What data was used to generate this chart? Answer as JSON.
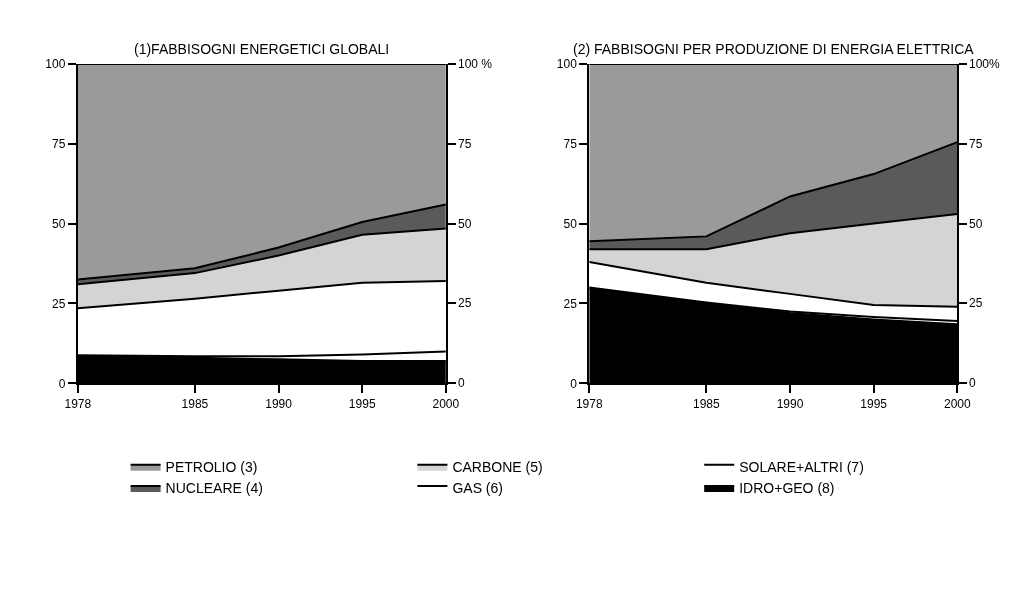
{
  "chart_data": [
    {
      "type": "area",
      "stacked": true,
      "title": "(1)FABBISOGNI ENERGETICI GLOBALI",
      "x": [
        1978,
        1985,
        1990,
        1995,
        2000
      ],
      "xlim": [
        1978,
        2000
      ],
      "xticks": [
        1978,
        1985,
        1990,
        1995,
        2000
      ],
      "ylim": [
        0,
        100
      ],
      "yticks": [
        0,
        25,
        50,
        75,
        100
      ],
      "y2lim": [
        0,
        100
      ],
      "y2ticks": [
        0,
        25,
        50,
        75,
        {
          "value": 100,
          "label": "100 %"
        }
      ],
      "legend": "bottom",
      "series": [
        {
          "name": "IDRO+GEO (8)",
          "color": "#000000",
          "values": [
            8.5,
            8,
            7.5,
            7,
            7
          ]
        },
        {
          "name": "SOLARE+ALTRI (7)",
          "color": "#ffffff",
          "values": [
            0.3,
            0.5,
            1,
            2,
            3
          ]
        },
        {
          "name": "GAS (6)",
          "color": "#ffffff",
          "values": [
            14.7,
            18,
            20.5,
            22.5,
            22
          ]
        },
        {
          "name": "CARBONE (5)",
          "color": "#d4d4d4",
          "values": [
            7.5,
            8,
            11,
            15,
            16.5
          ]
        },
        {
          "name": "NUCLEARE (4)",
          "color": "#5a5a5a",
          "values": [
            1.5,
            1.5,
            2.5,
            4,
            7.5
          ]
        },
        {
          "name": "PETROLIO (3)",
          "color": "#9a9a9a",
          "values": [
            67.5,
            64,
            57.5,
            49.5,
            44
          ]
        }
      ]
    },
    {
      "type": "area",
      "stacked": true,
      "title": "(2) FABBISOGNI PER PRODUZIONE DI ENERGIA ELETTRICA",
      "x": [
        1978,
        1985,
        1990,
        1995,
        2000
      ],
      "xlim": [
        1978,
        2000
      ],
      "xticks": [
        1978,
        1985,
        1990,
        1995,
        2000
      ],
      "ylim": [
        0,
        100
      ],
      "yticks": [
        0,
        25,
        50,
        75,
        100
      ],
      "y2lim": [
        0,
        100
      ],
      "y2ticks": [
        0,
        25,
        50,
        75,
        {
          "value": 100,
          "label": "100%"
        }
      ],
      "series": [
        {
          "color": "#000000",
          "values": [
            30,
            25,
            22,
            20,
            18.5
          ]
        },
        {
          "color": "#ffffff",
          "values": [
            0,
            0.3,
            0.5,
            0.8,
            1
          ]
        },
        {
          "color": "#ffffff",
          "values": [
            8,
            6.2,
            5.5,
            3.7,
            4.5
          ]
        },
        {
          "color": "#d4d4d4",
          "values": [
            4,
            10.5,
            19,
            25.5,
            29
          ]
        },
        {
          "color": "#5a5a5a",
          "values": [
            2.5,
            4,
            11.5,
            15.5,
            22.5
          ]
        },
        {
          "color": "#9a9a9a",
          "values": [
            55.5,
            54,
            41.5,
            34.5,
            24.5
          ]
        }
      ]
    }
  ]
}
